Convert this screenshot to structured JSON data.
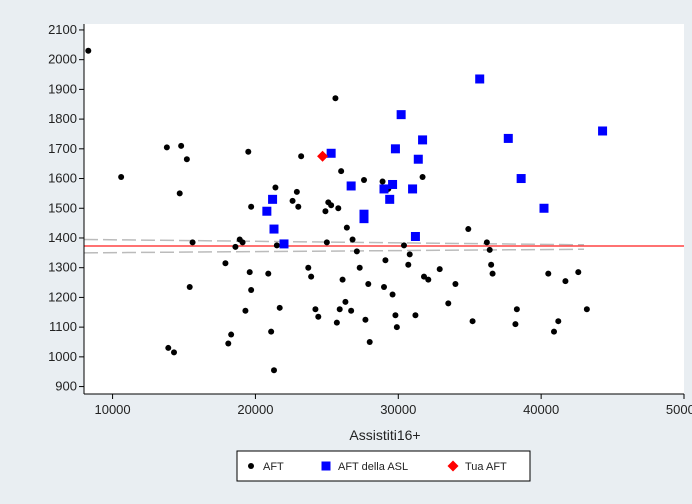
{
  "chart_data": {
    "type": "scatter",
    "xlabel": "Assistiti16+",
    "ylabel": "",
    "xlim": [
      8000,
      50000
    ],
    "ylim": [
      875,
      2120
    ],
    "x_ticks": [
      10000,
      20000,
      30000,
      40000,
      50000
    ],
    "y_ticks": [
      900,
      1000,
      1100,
      1200,
      1300,
      1400,
      1500,
      1600,
      1700,
      1800,
      1900,
      2000,
      2100
    ],
    "grid": false,
    "legend_position": "bottom",
    "reference_line": {
      "y": 1373,
      "color": "#ff4444"
    },
    "trend_lines": [
      {
        "x": [
          8000,
          43000
        ],
        "y": [
          1395,
          1377
        ],
        "color": "#bbbbbb"
      },
      {
        "x": [
          8000,
          43000
        ],
        "y": [
          1350,
          1362
        ],
        "color": "#bbbbbb"
      }
    ],
    "series": [
      {
        "name": "AFT",
        "marker": "circle",
        "color": "#000000",
        "points": [
          [
            8300,
            2030
          ],
          [
            10600,
            1605
          ],
          [
            13800,
            1705
          ],
          [
            14800,
            1710
          ],
          [
            15200,
            1665
          ],
          [
            14700,
            1550
          ],
          [
            15600,
            1385
          ],
          [
            15400,
            1235
          ],
          [
            13900,
            1030
          ],
          [
            14300,
            1015
          ],
          [
            17900,
            1315
          ],
          [
            18100,
            1045
          ],
          [
            18300,
            1075
          ],
          [
            18600,
            1370
          ],
          [
            18900,
            1395
          ],
          [
            19100,
            1385
          ],
          [
            19300,
            1155
          ],
          [
            19500,
            1690
          ],
          [
            19600,
            1285
          ],
          [
            19700,
            1505
          ],
          [
            19700,
            1225
          ],
          [
            20900,
            1280
          ],
          [
            21100,
            1085
          ],
          [
            21300,
            955
          ],
          [
            21400,
            1570
          ],
          [
            21700,
            1165
          ],
          [
            21500,
            1375
          ],
          [
            22600,
            1525
          ],
          [
            22900,
            1555
          ],
          [
            23000,
            1505
          ],
          [
            23200,
            1675
          ],
          [
            23700,
            1300
          ],
          [
            23900,
            1270
          ],
          [
            24200,
            1160
          ],
          [
            24400,
            1135
          ],
          [
            24900,
            1490
          ],
          [
            25100,
            1520
          ],
          [
            25000,
            1385
          ],
          [
            25300,
            1510
          ],
          [
            25600,
            1870
          ],
          [
            25800,
            1500
          ],
          [
            25900,
            1160
          ],
          [
            25700,
            1115
          ],
          [
            26000,
            1625
          ],
          [
            26100,
            1260
          ],
          [
            26300,
            1185
          ],
          [
            26400,
            1435
          ],
          [
            26700,
            1155
          ],
          [
            26800,
            1395
          ],
          [
            27100,
            1355
          ],
          [
            27300,
            1300
          ],
          [
            27600,
            1595
          ],
          [
            27700,
            1125
          ],
          [
            27900,
            1245
          ],
          [
            28000,
            1050
          ],
          [
            28900,
            1590
          ],
          [
            29000,
            1235
          ],
          [
            29100,
            1325
          ],
          [
            29300,
            1565
          ],
          [
            29600,
            1210
          ],
          [
            29800,
            1140
          ],
          [
            29900,
            1100
          ],
          [
            30400,
            1375
          ],
          [
            30700,
            1310
          ],
          [
            30800,
            1345
          ],
          [
            31200,
            1140
          ],
          [
            31700,
            1605
          ],
          [
            31800,
            1270
          ],
          [
            32100,
            1260
          ],
          [
            32900,
            1295
          ],
          [
            33500,
            1180
          ],
          [
            34000,
            1245
          ],
          [
            34900,
            1430
          ],
          [
            35200,
            1120
          ],
          [
            36200,
            1385
          ],
          [
            36400,
            1360
          ],
          [
            36500,
            1310
          ],
          [
            36600,
            1280
          ],
          [
            38200,
            1110
          ],
          [
            38300,
            1160
          ],
          [
            40500,
            1280
          ],
          [
            40900,
            1085
          ],
          [
            41200,
            1120
          ],
          [
            41700,
            1255
          ],
          [
            42600,
            1285
          ],
          [
            43200,
            1160
          ]
        ]
      },
      {
        "name": "AFT della ASL",
        "marker": "square",
        "color": "#0000ff",
        "points": [
          [
            20800,
            1490
          ],
          [
            21200,
            1530
          ],
          [
            21300,
            1430
          ],
          [
            22000,
            1380
          ],
          [
            25300,
            1685
          ],
          [
            26700,
            1575
          ],
          [
            27600,
            1480
          ],
          [
            27600,
            1465
          ],
          [
            29000,
            1565
          ],
          [
            29400,
            1530
          ],
          [
            29600,
            1580
          ],
          [
            29800,
            1700
          ],
          [
            30200,
            1815
          ],
          [
            31000,
            1565
          ],
          [
            31200,
            1405
          ],
          [
            31400,
            1665
          ],
          [
            31700,
            1730
          ],
          [
            35700,
            1935
          ],
          [
            37700,
            1735
          ],
          [
            38600,
            1600
          ],
          [
            40200,
            1500
          ],
          [
            44300,
            1760
          ]
        ]
      },
      {
        "name": "Tua AFT",
        "marker": "diamond",
        "color": "#ff0000",
        "points": [
          [
            24700,
            1675
          ]
        ]
      }
    ]
  }
}
